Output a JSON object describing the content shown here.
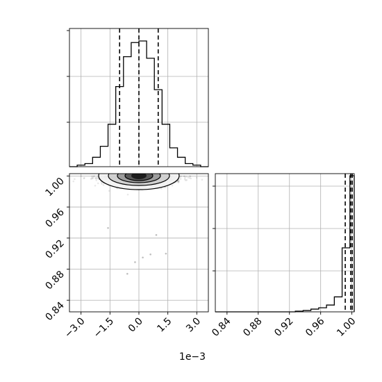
{
  "chart_data": {
    "type": "corner",
    "grid": true,
    "panels": [
      {
        "id": "hist-x",
        "type": "histogram",
        "x_axis": {
          "range": [
            -3.6,
            3.6
          ],
          "scale_offset": "1e−3",
          "ticks": []
        },
        "y_axis": {
          "ticks": []
        },
        "bin_edges": [
          -3.6,
          -3.2,
          -2.8,
          -2.4,
          -2.0,
          -1.6,
          -1.2,
          -0.8,
          -0.4,
          0.0,
          0.4,
          0.8,
          1.2,
          1.6,
          2.0,
          2.4,
          2.8,
          3.2,
          3.6
        ],
        "counts": [
          0,
          1,
          2,
          6,
          13,
          27,
          51,
          70,
          79,
          80,
          69,
          49,
          27,
          12,
          6,
          2,
          1,
          0
        ],
        "quantile_lines": [
          -1.0,
          0.0,
          1.0
        ]
      },
      {
        "id": "contour-2d",
        "type": "scatter-contour",
        "x_axis": {
          "range": [
            -3.6,
            3.6
          ],
          "ticks": [
            -3.0,
            -1.5,
            0.0,
            1.5,
            3.0
          ],
          "tick_labels": [
            "−3.0",
            "−1.5",
            "0.0",
            "1.5",
            "3.0"
          ],
          "offset_label": "1e−3"
        },
        "y_axis": {
          "range": [
            0.825,
            1.003
          ],
          "ticks": [
            0.84,
            0.88,
            0.92,
            0.96,
            1.0
          ],
          "tick_labels": [
            "0.84",
            "0.88",
            "0.92",
            "0.96",
            "1.00"
          ]
        }
      },
      {
        "id": "hist-y",
        "type": "histogram",
        "x_axis": {
          "range": [
            0.825,
            1.003
          ],
          "ticks": [
            0.84,
            0.88,
            0.92,
            0.96,
            1.0
          ],
          "tick_labels": [
            "0.84",
            "0.88",
            "0.92",
            "0.96",
            "1.00"
          ]
        },
        "y_axis": {
          "ticks": []
        },
        "bin_edges": [
          0.9275,
          0.9375,
          0.9475,
          0.9575,
          0.9675,
          0.9775,
          0.9875,
          0.9975,
          1.003
        ],
        "counts": [
          0.5,
          1,
          2,
          3,
          5,
          11,
          47,
          100
        ],
        "quantile_lines": [
          0.9915,
          0.9985,
          1.0005
        ]
      }
    ]
  }
}
